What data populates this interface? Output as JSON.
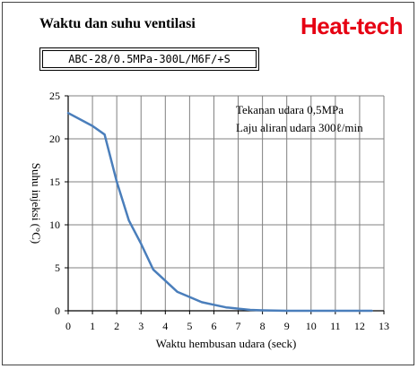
{
  "header": {
    "title": "Waktu dan suhu ventilasi",
    "brand": "Heat-tech",
    "model": "ABC-28/0.5MPa-300L/M6F/+S"
  },
  "colors": {
    "brand": "#e60012",
    "line": "#4a7ebb",
    "grid": "#808080"
  },
  "chart_data": {
    "type": "line",
    "title": "Waktu dan suhu ventilasi",
    "xlabel": "Waktu hembusan udara (seck)",
    "ylabel": "Suhu injeksi (°C)",
    "xlim": [
      0,
      13
    ],
    "ylim": [
      0,
      25
    ],
    "xticks": [
      0,
      1,
      2,
      3,
      4,
      5,
      6,
      7,
      8,
      9,
      10,
      11,
      12,
      13
    ],
    "yticks": [
      0,
      5,
      10,
      15,
      20,
      25
    ],
    "grid": true,
    "annotations": [
      "Tekanan udara 0,5MPa",
      "Laju aliran udara 300ℓ/min"
    ],
    "series": [
      {
        "x": [
          0,
          1,
          1.5,
          2,
          2.5,
          3,
          3.5,
          4,
          4.5,
          5,
          5.5,
          6,
          6.5,
          7,
          7.5,
          8,
          9,
          10,
          11,
          12,
          12.5
        ],
        "y": [
          23,
          21.5,
          20.5,
          15,
          10.5,
          7.8,
          4.8,
          3.5,
          2.2,
          1.6,
          1.0,
          0.7,
          0.4,
          0.25,
          0.1,
          0.05,
          0,
          0,
          0,
          0,
          0
        ]
      }
    ]
  }
}
